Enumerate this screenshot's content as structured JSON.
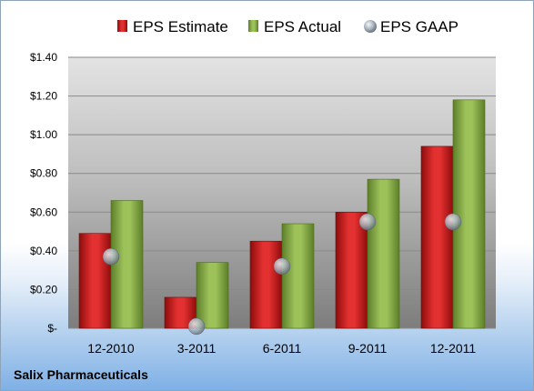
{
  "chart_data": {
    "type": "bar",
    "categories": [
      "12-2010",
      "3-2011",
      "6-2011",
      "9-2011",
      "12-2011"
    ],
    "series": [
      {
        "name": "EPS Estimate",
        "kind": "bar",
        "color": "#d42020",
        "values": [
          0.49,
          0.16,
          0.45,
          0.6,
          0.94
        ]
      },
      {
        "name": "EPS Actual",
        "kind": "bar",
        "color": "#8db349",
        "values": [
          0.66,
          0.34,
          0.54,
          0.77,
          1.18
        ]
      },
      {
        "name": "EPS GAAP",
        "kind": "marker",
        "color": "#b8c4d0",
        "values": [
          0.37,
          0.01,
          0.32,
          0.55,
          0.55
        ]
      }
    ],
    "yticks": [
      0,
      0.2,
      0.4,
      0.6,
      0.8,
      1.0,
      1.2,
      1.4
    ],
    "ytick_labels": [
      "$-",
      "$0.20",
      "$0.40",
      "$0.60",
      "$0.80",
      "$1.00",
      "$1.20",
      "$1.40"
    ],
    "ylim": [
      0,
      1.4
    ],
    "grid": true,
    "legend_position": "top"
  },
  "footer": {
    "company": "Salix Pharmaceuticals"
  }
}
